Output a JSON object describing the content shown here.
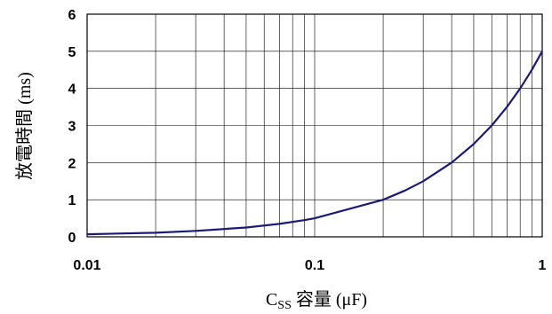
{
  "chart_data": {
    "type": "line",
    "xscale": "log",
    "xlim": [
      0.01,
      1
    ],
    "ylim": [
      0,
      6
    ],
    "grid": true,
    "xlabel": "Css 容量 (μF)",
    "ylabel": "放電時間 (ms)",
    "x_ticks": [
      {
        "value": 0.01,
        "label": "0.01"
      },
      {
        "value": 0.1,
        "label": "0.1"
      },
      {
        "value": 1,
        "label": "1"
      }
    ],
    "y_ticks": [
      {
        "value": 0,
        "label": "0"
      },
      {
        "value": 1,
        "label": "1"
      },
      {
        "value": 2,
        "label": "2"
      },
      {
        "value": 3,
        "label": "3"
      },
      {
        "value": 4,
        "label": "4"
      },
      {
        "value": 5,
        "label": "5"
      },
      {
        "value": 6,
        "label": "6"
      }
    ],
    "series": [
      {
        "color": "#1a1a7a",
        "x": [
          0.01,
          0.02,
          0.03,
          0.05,
          0.07,
          0.09,
          0.1,
          0.2,
          0.25,
          0.3,
          0.4,
          0.5,
          0.6,
          0.7,
          0.8,
          0.9,
          1.0
        ],
        "y": [
          0.07,
          0.11,
          0.16,
          0.25,
          0.35,
          0.45,
          0.5,
          1.0,
          1.25,
          1.5,
          2.0,
          2.5,
          3.0,
          3.5,
          4.0,
          4.5,
          5.0
        ]
      }
    ]
  }
}
